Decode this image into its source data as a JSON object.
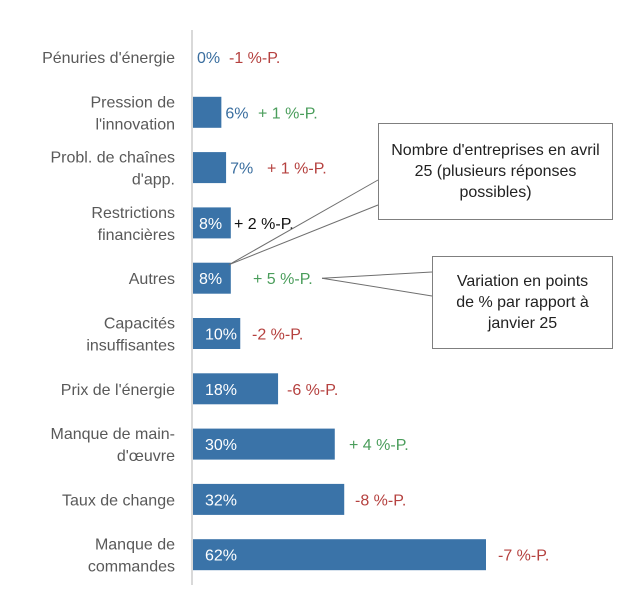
{
  "chart_data": {
    "type": "bar",
    "orientation": "horizontal",
    "categories": [
      [
        "Pénuries d'énergie"
      ],
      [
        "Pression de",
        "l'innovation"
      ],
      [
        "Probl. de chaînes",
        "d'app."
      ],
      [
        "Restrictions",
        "financières"
      ],
      [
        "Autres"
      ],
      [
        "Capacités",
        "insuffisantes"
      ],
      [
        "Prix de l'énergie"
      ],
      [
        "Manque de main-",
        "d'œuvre"
      ],
      [
        "Taux de change"
      ],
      [
        "Manque de",
        "commandes"
      ]
    ],
    "values": [
      0,
      6,
      7,
      8,
      8,
      10,
      18,
      30,
      32,
      62
    ],
    "value_labels": [
      "0%",
      "6%",
      "7%",
      "8%",
      "8%",
      "10%",
      "18%",
      "30%",
      "32%",
      "62%"
    ],
    "changes": [
      -1,
      1,
      1,
      2,
      5,
      -2,
      -6,
      4,
      -8,
      -7
    ],
    "change_labels": [
      "-1 %-P.",
      "+ 1 %-P.",
      "+ 1 %-P.",
      "+ 2 %-P.",
      "+ 5 %-P.",
      "-2 %-P.",
      "-6 %-P.",
      "+ 4 %-P.",
      "-8 %-P.",
      "-7 %-P."
    ],
    "change_colors": [
      "#b5413f",
      "#4a9d5b",
      "#b5413f",
      "#111111",
      "#4a9d5b",
      "#b5413f",
      "#b5413f",
      "#4a9d5b",
      "#b5413f",
      "#b5413f"
    ],
    "xlim": [
      0,
      62
    ],
    "grid": false,
    "bar_color": "#3a73a8",
    "value_label_outside_color": "#3a6e9f",
    "value_label_inside_color": "#ffffff"
  },
  "annotations": {
    "bars_note": "Nombre d'entreprises en avril 25 (plusieurs réponses possibles)",
    "change_note": "Variation en points de % par rapport à janvier 25"
  }
}
